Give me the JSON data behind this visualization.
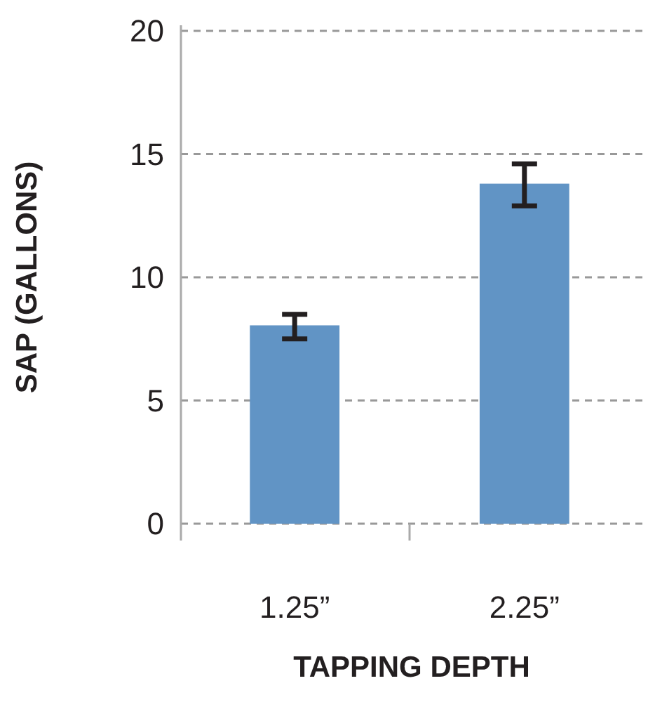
{
  "chart_data": {
    "type": "bar",
    "xlabel": "TAPPING DEPTH",
    "ylabel": "SAP (GALLONS)",
    "categories": [
      "1.25”",
      "2.25”"
    ],
    "values": [
      8.05,
      13.8
    ],
    "errors": [
      [
        7.5,
        8.5
      ],
      [
        12.9,
        14.6
      ]
    ],
    "color": "#6194c5",
    "ylim": [
      0,
      20
    ],
    "yticks": [
      0,
      5,
      10,
      15,
      20
    ],
    "grid": "y"
  }
}
